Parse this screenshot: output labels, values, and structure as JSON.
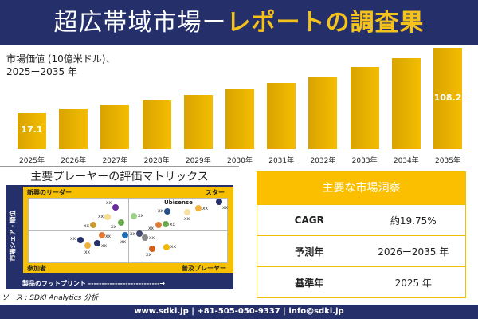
{
  "header": {
    "title_main": "超広帯域市場",
    "title_dash": "ー",
    "title_accent": "レポートの調査果"
  },
  "chart_data": {
    "type": "bar",
    "title": "市場価値 (10億米ドル)、",
    "subtitle": "2025ー2035 年",
    "categories": [
      "2025年",
      "2026年",
      "2027年",
      "2028年",
      "2029年",
      "2030年",
      "2031年",
      "2032年",
      "2033年",
      "2034年",
      "2035年"
    ],
    "values": [
      17.1,
      22.7,
      28.2,
      34.9,
      42.6,
      50.4,
      59.3,
      68.2,
      81.5,
      93.7,
      108.2
    ],
    "data_labels": {
      "0": "17.1",
      "10": "108.2"
    },
    "bar_color": "#f4bd00"
  },
  "matrix": {
    "title": "主要プレーヤーの評価マトリックス",
    "q_tl": "新興のリーダー",
    "q_tr": "スター",
    "q_bl": "参加者",
    "q_br": "普及プレーヤー",
    "y_axis": "市場シェア・順位",
    "x_axis": "製品のフットプリント ---------------------------→",
    "highlight": "Ubisense",
    "point_label": "xx",
    "points": [
      {
        "c": "#6a2aa0",
        "x": 145,
        "y": 260
      },
      {
        "c": "#f3dc8a",
        "x": 135,
        "y": 272
      },
      {
        "c": "#6aa84f",
        "x": 152,
        "y": 279
      },
      {
        "c": "#c89a30",
        "x": 117,
        "y": 282
      },
      {
        "c": "#e07b39",
        "x": 128,
        "y": 295
      },
      {
        "c": "#1f6fb8",
        "x": 157,
        "y": 295
      },
      {
        "c": "#25306a",
        "x": 101,
        "y": 301
      },
      {
        "c": "#25306a",
        "x": 122,
        "y": 305
      },
      {
        "c": "#f2b33d",
        "x": 110,
        "y": 308
      },
      {
        "c": "#9fd08a",
        "x": 168,
        "y": 271
      },
      {
        "c": "#25508a",
        "x": 210,
        "y": 265
      },
      {
        "c": "#25306a",
        "x": 275,
        "y": 253
      },
      {
        "c": "#f2b33d",
        "x": 249,
        "y": 261
      },
      {
        "c": "#f8e0a0",
        "x": 235,
        "y": 266
      },
      {
        "c": "#e07b39",
        "x": 199,
        "y": 282
      },
      {
        "c": "#6aa84f",
        "x": 208,
        "y": 281
      },
      {
        "c": "#404a70",
        "x": 175,
        "y": 293
      },
      {
        "c": "#888888",
        "x": 182,
        "y": 298
      },
      {
        "c": "#d0601c",
        "x": 191,
        "y": 312
      },
      {
        "c": "#f2b800",
        "x": 209,
        "y": 310
      }
    ]
  },
  "source": "ソース : SDKI Analytics 分析",
  "insights": {
    "title": "主要な市場洞察",
    "rows": [
      {
        "k": "CAGR",
        "v": "約19.75%"
      },
      {
        "k": "予測年",
        "v": "2026ー2035 年"
      },
      {
        "k": "基準年",
        "v": "2025 年"
      }
    ]
  },
  "footer": "www.sdki.jp | +81-505-050-9337 | info@sdki.jp"
}
